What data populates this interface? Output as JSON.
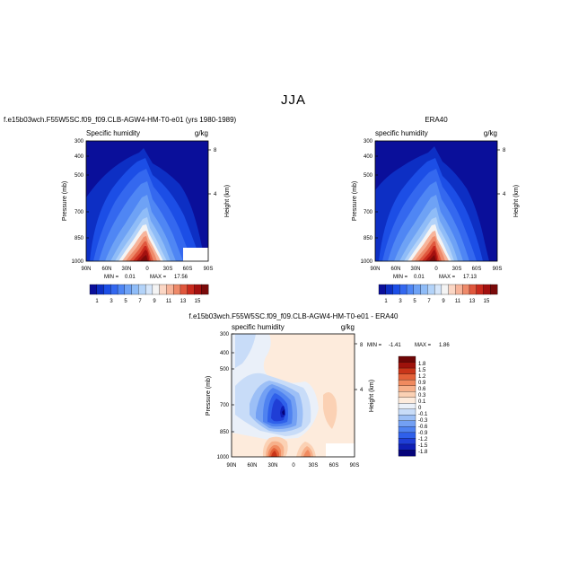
{
  "title": "JJA",
  "colors": {
    "ramp": [
      "#0a0f9a",
      "#0d2fc4",
      "#1c4ee6",
      "#3468ef",
      "#4f86f4",
      "#6ea2f5",
      "#8fbcf7",
      "#b3d3f9",
      "#d6e6fa",
      "#f4f4f4",
      "#fbd6c4",
      "#f7b49a",
      "#ee8a6a",
      "#e0573d",
      "#c92a1d",
      "#a3100f",
      "#7a0a0a"
    ],
    "diff": [
      "#06047a",
      "#0f1fb5",
      "#1f3ed6",
      "#2f60ea",
      "#4f82f0",
      "#73a0f3",
      "#9cbff6",
      "#c8dcf8",
      "#eaf0f9",
      "#fdebdc",
      "#fbd1b4",
      "#f7b08a",
      "#f08a5f",
      "#e36138",
      "#c93519",
      "#9e120b",
      "#6e0606"
    ]
  },
  "chart_data": [
    {
      "type": "heatmap",
      "title": "f.e15b03wch.F55W5SC.f09_f09.CLB-AGW4-HM-T0-e01 (yrs 1980-1989)",
      "left_label": "Specific humidity",
      "right_label": "g/kg",
      "xlabel": "",
      "ylabel": "Pressure (mb)",
      "y2label": "Height (km)",
      "x_ticks": [
        "90N",
        "60N",
        "30N",
        "0",
        "30S",
        "60S",
        "90S"
      ],
      "y_ticks": [
        "300",
        "400",
        "500",
        "700",
        "850",
        "1000"
      ],
      "y2_ticks": [
        "8",
        "4"
      ],
      "xlim": [
        90,
        -90
      ],
      "ylim": [
        1000,
        300
      ],
      "min_label": "MIN =",
      "min_value": "0.01",
      "max_label": "MAX =",
      "max_value": "17.56",
      "colorbar_labels": [
        "1",
        "3",
        "5",
        "7",
        "9",
        "11",
        "13",
        "15"
      ],
      "levels": [
        1,
        2,
        3,
        4,
        5,
        6,
        7,
        8,
        9,
        10,
        11,
        12,
        13,
        14,
        15,
        16
      ]
    },
    {
      "type": "heatmap",
      "title": "ERA40",
      "left_label": "specific humidity",
      "right_label": "g/kg",
      "xlabel": "",
      "ylabel": "Pressure (mb)",
      "y2label": "Height (km)",
      "x_ticks": [
        "90N",
        "60N",
        "30N",
        "0",
        "30S",
        "60S",
        "90S"
      ],
      "y_ticks": [
        "300",
        "400",
        "500",
        "700",
        "850",
        "1000"
      ],
      "y2_ticks": [
        "8",
        "4"
      ],
      "xlim": [
        90,
        -90
      ],
      "ylim": [
        1000,
        300
      ],
      "min_label": "MIN =",
      "min_value": "0.01",
      "max_label": "MAX =",
      "max_value": "17.13",
      "colorbar_labels": [
        "1",
        "3",
        "5",
        "7",
        "9",
        "11",
        "13",
        "15"
      ],
      "levels": [
        1,
        2,
        3,
        4,
        5,
        6,
        7,
        8,
        9,
        10,
        11,
        12,
        13,
        14,
        15,
        16
      ]
    },
    {
      "type": "heatmap",
      "title": "f.e15b03wch.F55W5SC.f09_f09.CLB-AGW4-HM-T0-e01 - ERA40",
      "left_label": "specific humidity",
      "right_label": "g/kg",
      "xlabel": "",
      "ylabel": "Pressure (mb)",
      "y2label": "Height (km)",
      "x_ticks": [
        "90N",
        "60N",
        "30N",
        "0",
        "30S",
        "60S",
        "90S"
      ],
      "y_ticks": [
        "300",
        "400",
        "500",
        "700",
        "850",
        "1000"
      ],
      "y2_ticks": [
        "8",
        "4"
      ],
      "xlim": [
        90,
        -90
      ],
      "ylim": [
        1000,
        300
      ],
      "min_label": "MIN =",
      "min_value": "-1.41",
      "max_label": "MAX =",
      "max_value": "1.86",
      "colorbar_labels": [
        "1.8",
        "1.5",
        "1.2",
        "0.9",
        "0.6",
        "0.3",
        "0.1",
        "0",
        "-0.1",
        "-0.3",
        "-0.6",
        "-0.9",
        "-1.2",
        "-1.5",
        "-1.8"
      ],
      "levels": [
        1.8,
        1.5,
        1.2,
        0.9,
        0.6,
        0.3,
        0.1,
        0,
        -0.1,
        -0.3,
        -0.6,
        -0.9,
        -1.2,
        -1.5,
        -1.8
      ]
    }
  ]
}
